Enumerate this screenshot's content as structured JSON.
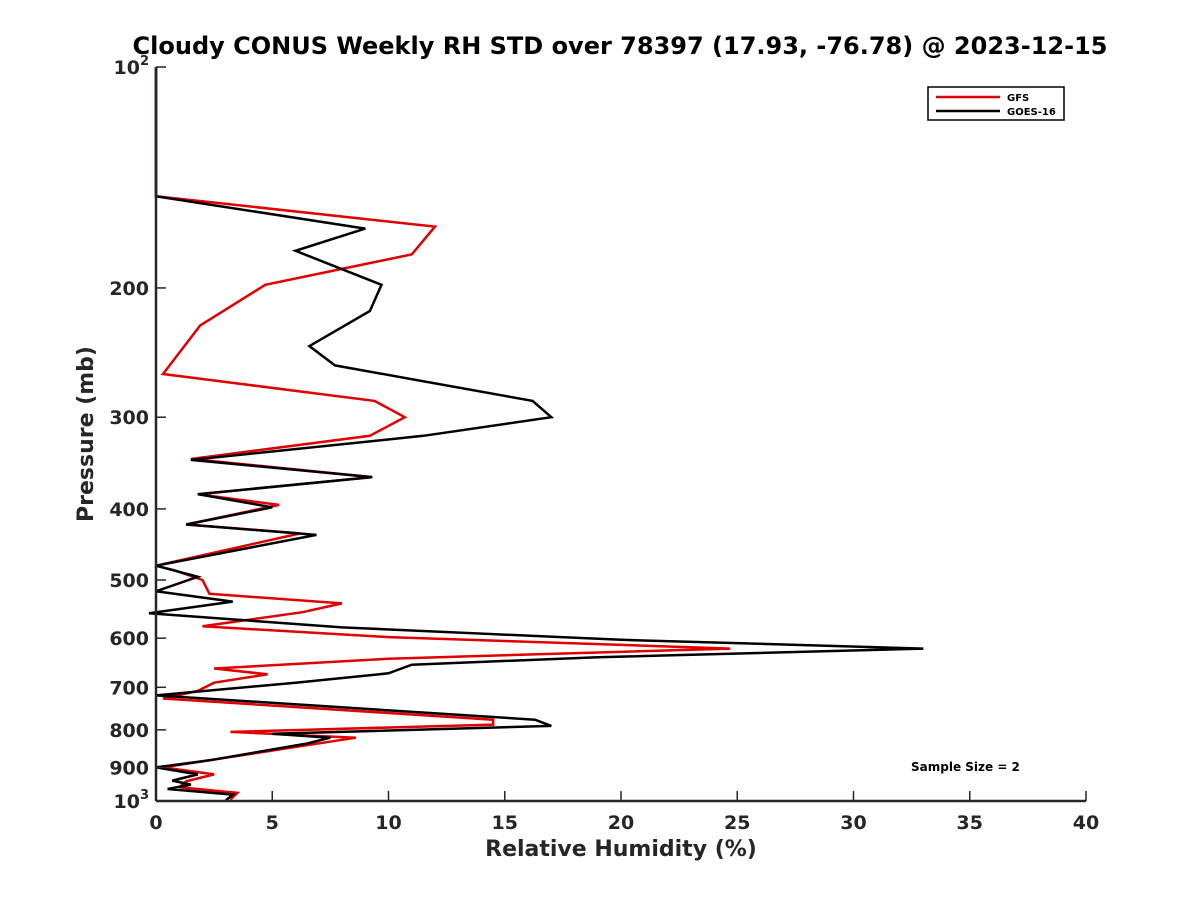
{
  "chart_data": {
    "type": "line",
    "title": "Cloudy CONUS Weekly RH STD over 78397 (17.93, -76.78) @ 2023-12-15",
    "xlabel": "Relative Humidity (%)",
    "ylabel": "Pressure (mb)",
    "xlim": [
      0,
      40
    ],
    "ylim": [
      100,
      1000
    ],
    "y_scale": "log",
    "y_reversed": true,
    "grid": false,
    "legend_position": "top-right",
    "x_ticks": [
      "0",
      "5",
      "10",
      "15",
      "20",
      "25",
      "30",
      "35",
      "40"
    ],
    "y_ticks": [
      {
        "value": 100,
        "base": "10",
        "exp": "2"
      },
      {
        "value": 200,
        "label": "200"
      },
      {
        "value": 300,
        "label": "300"
      },
      {
        "value": 400,
        "label": "400"
      },
      {
        "value": 500,
        "label": "500"
      },
      {
        "value": 600,
        "label": "600"
      },
      {
        "value": 700,
        "label": "700"
      },
      {
        "value": 800,
        "label": "800"
      },
      {
        "value": 900,
        "label": "900"
      },
      {
        "value": 1000,
        "base": "10",
        "exp": "3"
      }
    ],
    "series": [
      {
        "name": "GFS",
        "color": "#e00000",
        "points": [
          [
            0,
            100
          ],
          [
            0,
            150
          ],
          [
            12,
            165
          ],
          [
            11,
            180
          ],
          [
            4.7,
            198
          ],
          [
            1.9,
            225
          ],
          [
            0.3,
            262
          ],
          [
            9.4,
            285
          ],
          [
            10.7,
            300
          ],
          [
            9.2,
            318
          ],
          [
            1.5,
            342
          ],
          [
            9.3,
            362
          ],
          [
            1.8,
            382
          ],
          [
            5.3,
            395
          ],
          [
            1.3,
            420
          ],
          [
            6.2,
            432
          ],
          [
            0,
            478
          ],
          [
            0.8,
            485
          ],
          [
            2.0,
            500
          ],
          [
            2.3,
            522
          ],
          [
            8.0,
            538
          ],
          [
            6.3,
            553
          ],
          [
            2.0,
            578
          ],
          [
            10,
            598
          ],
          [
            24.7,
            620
          ],
          [
            10,
            640
          ],
          [
            2.5,
            660
          ],
          [
            4.8,
            672
          ],
          [
            2.5,
            690
          ],
          [
            1.8,
            708
          ],
          [
            0.3,
            725
          ],
          [
            14.5,
            775
          ],
          [
            14.5,
            787
          ],
          [
            3.2,
            805
          ],
          [
            8.6,
            820
          ],
          [
            0.3,
            900
          ],
          [
            2.5,
            920
          ],
          [
            1.3,
            940
          ],
          [
            1.0,
            958
          ],
          [
            3.5,
            975
          ],
          [
            3.2,
            995
          ]
        ]
      },
      {
        "name": "GOES-16",
        "color": "#000000",
        "points": [
          [
            0,
            100
          ],
          [
            0,
            150
          ],
          [
            9,
            166
          ],
          [
            6,
            178
          ],
          [
            9.7,
            198
          ],
          [
            9.2,
            215
          ],
          [
            6.6,
            240
          ],
          [
            7.7,
            255
          ],
          [
            16.2,
            285
          ],
          [
            17,
            300
          ],
          [
            11.5,
            318
          ],
          [
            1.5,
            343
          ],
          [
            9.3,
            362
          ],
          [
            1.8,
            382
          ],
          [
            5.0,
            398
          ],
          [
            1.3,
            420
          ],
          [
            6.9,
            434
          ],
          [
            0,
            478
          ],
          [
            1.8,
            495
          ],
          [
            0,
            518
          ],
          [
            3.3,
            535
          ],
          [
            -0.3,
            555
          ],
          [
            8,
            580
          ],
          [
            20,
            603
          ],
          [
            33,
            620
          ],
          [
            19,
            637
          ],
          [
            11,
            652
          ],
          [
            10,
            670
          ],
          [
            6,
            690
          ],
          [
            0,
            718
          ],
          [
            16.3,
            775
          ],
          [
            17,
            790
          ],
          [
            5,
            810
          ],
          [
            7.5,
            820
          ],
          [
            6.5,
            835
          ],
          [
            2.3,
            880
          ],
          [
            0,
            900
          ],
          [
            1.8,
            920
          ],
          [
            0.7,
            938
          ],
          [
            1.5,
            950
          ],
          [
            0.5,
            963
          ],
          [
            3.3,
            980
          ],
          [
            3,
            998
          ]
        ]
      }
    ],
    "annotations": [
      "Sample Size = 2"
    ]
  }
}
